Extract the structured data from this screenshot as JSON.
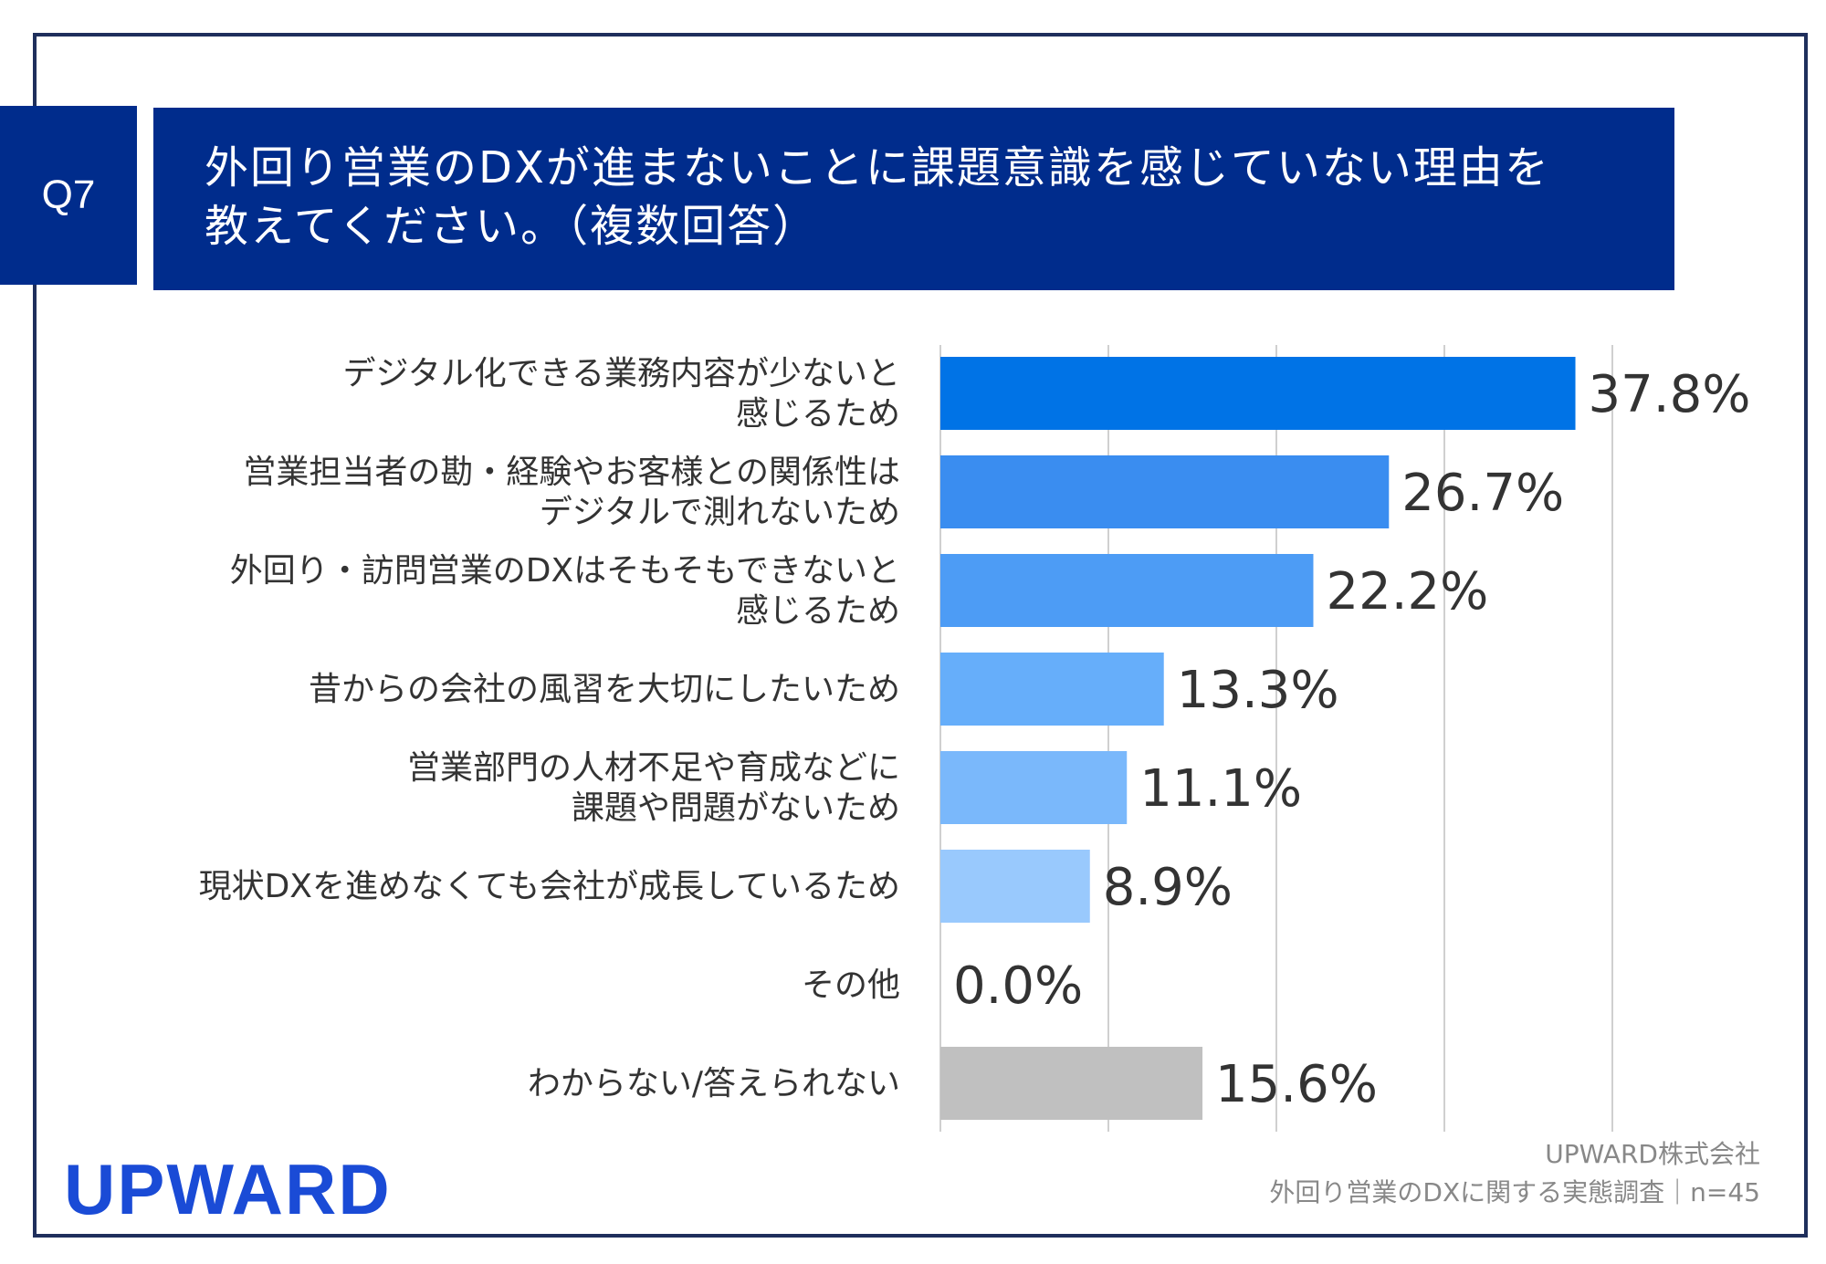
{
  "header": {
    "question_no": "Q7",
    "title_line1": "外回り営業のDXが進まないことに課題意識を感じていない理由を",
    "title_line2": "教えてください。（複数回答）"
  },
  "chart_data": {
    "type": "bar",
    "orientation": "horizontal",
    "title": "外回り営業のDXが進まないことに課題意識を感じていない理由を教えてください。（複数回答）",
    "xlim": [
      0,
      40
    ],
    "grid": true,
    "categories": [
      [
        "デジタル化できる業務内容が少ないと",
        "感じるため"
      ],
      [
        "営業担当者の勘・経験やお客様との関係性は",
        "デジタルで測れないため"
      ],
      [
        "外回り・訪問営業のDXはそもそもできないと",
        "感じるため"
      ],
      [
        "昔からの会社の風習を大切にしたいため"
      ],
      [
        "営業部門の人材不足や育成などに",
        "課題や問題がないため"
      ],
      [
        "現状DXを進めなくても会社が成長しているため"
      ],
      [
        "その他"
      ],
      [
        "わからない/答えられない"
      ]
    ],
    "values": [
      37.8,
      26.7,
      22.2,
      13.3,
      11.1,
      8.9,
      0.0,
      15.6
    ],
    "value_labels": [
      "37.8%",
      "26.7%",
      "22.2%",
      "13.3%",
      "11.1%",
      "8.9%",
      "0.0%",
      "15.6%"
    ],
    "colors": [
      "#0073e6",
      "#3a8df0",
      "#4d9cf5",
      "#66aefa",
      "#7ab8fb",
      "#99c9fd",
      "#99c9fd",
      "#c0c0c0"
    ],
    "grid_color": "#d0d0d0"
  },
  "footer": {
    "logo": "UPWARD",
    "source_line1": "UPWARD株式会社",
    "source_line2": "外回り営業のDXに関する実態調査｜n=45"
  }
}
